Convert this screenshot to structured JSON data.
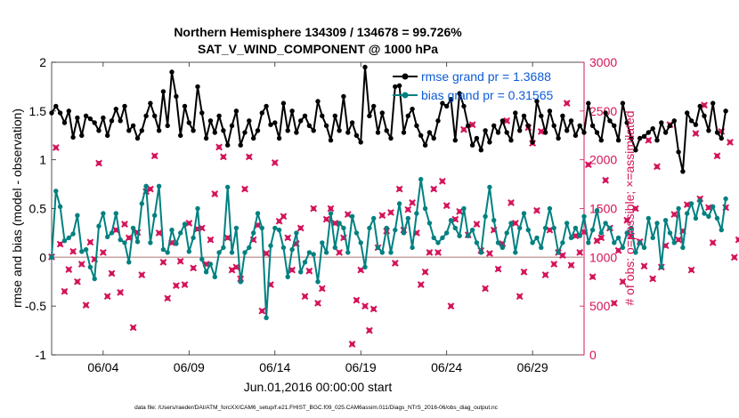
{
  "chart_data": {
    "type": "line",
    "title_line1": "Northern Hemisphere 134309 / 134678 = 99.726%",
    "title_line2": "SAT_V_WIND_COMPONENT @ 1000 hPa",
    "xlabel": "Jun.01,2016 00:00:00 start",
    "ylabel_left": "rmse and bias (model - observation)",
    "ylabel_right": "# of obs: o=possible; ×=assimilated",
    "footer": "data file: /Users/raeder/DAI/ATM_forcXX/CAM6_setup/f.e21.FHIST_BGC.f09_025.CAM6assim.011/Diags_NTrS_2016-06/obs_diag_output.nc",
    "ylim_left": [
      -1,
      2
    ],
    "ylim_right": [
      0,
      3000
    ],
    "left_ticks": [
      "-1",
      "-0.5",
      "0",
      "0.5",
      "1",
      "1.5",
      "2"
    ],
    "right_ticks": [
      "0",
      "500",
      "1000",
      "1500",
      "2000",
      "2500",
      "3000"
    ],
    "x_range_days": [
      1,
      32
    ],
    "x_ticks": [
      {
        "day": 4,
        "label": "06/04"
      },
      {
        "day": 9,
        "label": "06/09"
      },
      {
        "day": 14,
        "label": "06/14"
      },
      {
        "day": 19,
        "label": "06/19"
      },
      {
        "day": 24,
        "label": "06/24"
      },
      {
        "day": 29,
        "label": "06/29"
      }
    ],
    "grid": false,
    "legend_position": "top-right",
    "series": [
      {
        "name": "rmse grand pr = 1.3688",
        "color": "#000000",
        "axis": "left",
        "x_start": 1.0,
        "x_step": 0.25,
        "values": [
          1.48,
          1.55,
          1.48,
          1.38,
          1.5,
          1.23,
          1.43,
          1.25,
          1.45,
          1.42,
          1.38,
          1.3,
          1.43,
          1.25,
          1.4,
          1.52,
          1.4,
          1.55,
          1.3,
          1.35,
          1.22,
          1.3,
          1.45,
          1.58,
          1.45,
          1.3,
          1.7,
          1.35,
          1.9,
          1.65,
          1.25,
          1.55,
          1.38,
          1.3,
          1.75,
          1.48,
          1.22,
          1.4,
          1.28,
          1.45,
          1.3,
          1.15,
          1.35,
          1.5,
          1.15,
          1.28,
          1.4,
          1.22,
          1.3,
          1.48,
          1.55,
          1.36,
          1.38,
          1.22,
          1.58,
          1.3,
          1.5,
          1.28,
          1.4,
          1.45,
          1.35,
          1.3,
          1.6,
          1.45,
          1.35,
          1.2,
          1.45,
          1.3,
          1.65,
          1.28,
          1.38,
          1.25,
          1.18,
          1.95,
          1.45,
          1.55,
          1.28,
          1.48,
          1.3,
          1.22,
          1.75,
          1.76,
          1.28,
          1.45,
          1.52,
          1.35,
          1.25,
          1.15,
          1.28,
          1.22,
          1.4,
          1.58,
          1.55,
          1.62,
          1.2,
          1.68,
          1.55,
          1.35,
          1.15,
          1.22,
          1.1,
          1.3,
          1.18,
          1.35,
          1.28,
          1.4,
          1.28,
          1.2,
          1.48,
          1.3,
          1.45,
          1.35,
          1.18,
          1.6,
          1.45,
          1.28,
          1.5,
          1.35,
          1.22,
          1.45,
          1.3,
          1.4,
          1.25,
          1.35,
          1.28,
          1.58,
          1.35,
          1.28,
          1.2,
          1.48,
          1.4,
          1.35,
          1.2,
          1.58,
          1.38,
          1.22,
          1.1,
          1.22,
          1.24,
          1.28,
          1.32,
          1.2,
          1.38,
          1.28,
          1.35,
          1.4,
          1.08,
          0.88,
          1.48,
          1.4,
          1.36,
          1.55,
          1.45,
          1.3,
          1.58,
          1.28,
          1.22,
          1.5
        ]
      },
      {
        "name": "bias grand pr = 0.31565",
        "color": "#008080",
        "axis": "left",
        "x_start": 1.0,
        "x_step": 0.25,
        "values": [
          0.0,
          0.68,
          0.52,
          0.17,
          0.2,
          0.24,
          0.43,
          0.06,
          0.08,
          -0.1,
          -0.22,
          0.32,
          0.45,
          0.21,
          0.25,
          0.45,
          0.18,
          0.15,
          -0.05,
          0.3,
          0.16,
          0.55,
          0.73,
          0.15,
          0.43,
          0.73,
          0.08,
          0.05,
          0.28,
          0.14,
          0.25,
          0.34,
          0.06,
          0.2,
          0.5,
          -0.02,
          -0.15,
          -0.07,
          -0.2,
          0.05,
          0.1,
          0.72,
          0.05,
          0.3,
          -0.25,
          0.05,
          0.1,
          0.25,
          0.45,
          0.3,
          -0.62,
          0.12,
          0.3,
          0.28,
          0.1,
          -0.2,
          0.08,
          0.25,
          -0.15,
          -0.05,
          0.05,
          0.03,
          -0.25,
          0.15,
          0.05,
          0.45,
          0.1,
          0.35,
          0.3,
          0.05,
          0.42,
          0.25,
          0.15,
          -0.1,
          0.3,
          0.4,
          0.1,
          0.05,
          0.3,
          0.05,
          0.28,
          0.55,
          0.25,
          0.4,
          0.1,
          0.45,
          0.8,
          0.5,
          0.35,
          0.2,
          0.15,
          0.2,
          0.25,
          0.38,
          0.3,
          0.22,
          0.5,
          0.22,
          0.28,
          0.15,
          0.05,
          0.42,
          0.72,
          0.38,
          0.15,
          0.1,
          0.25,
          0.35,
          0.05,
          0.3,
          0.45,
          0.28,
          0.15,
          0.2,
          0.1,
          0.3,
          0.5,
          0.3,
          0.05,
          0.15,
          0.35,
          0.2,
          0.3,
          0.22,
          0.42,
          0.15,
          0.28,
          0.48,
          0.25,
          0.35,
          0.3,
          0.15,
          0.2,
          0.1,
          0.25,
          0.3,
          0.05,
          0.15,
          0.1,
          0.4,
          0.2,
          0.35,
          -0.1,
          0.38,
          0.25,
          0.15,
          0.5,
          0.1,
          0.45,
          0.55,
          0.4,
          0.58,
          0.45,
          0.42,
          0.52,
          0.4,
          0.28,
          0.6
        ]
      }
    ],
    "obs_assimilated": {
      "name": "# of obs assimilated",
      "color": "#d4145a",
      "axis": "right",
      "x_start": 1.0,
      "x_step": 0.25,
      "values": [
        1005,
        2125,
        1135,
        650,
        875,
        1060,
        750,
        930,
        510,
        1155,
        980,
        1965,
        1050,
        600,
        835,
        1280,
        640,
        1340,
        1200,
        280,
        1255,
        820,
        1675,
        1700,
        2040,
        1250,
        950,
        580,
        1150,
        710,
        960,
        720,
        1350,
        890,
        1290,
        1300,
        930,
        1180,
        1650,
        2130,
        2030,
        1200,
        870,
        900,
        780,
        1700,
        2030,
        1180,
        1330,
        450,
        1040,
        720,
        1970,
        1370,
        1420,
        1200,
        870,
        1140,
        1300,
        600,
        860,
        1500,
        530,
        680,
        1390,
        1500,
        1350,
        1050,
        1200,
        1440,
        110,
        560,
        870,
        500,
        250,
        470,
        1100,
        1430,
        1270,
        1460,
        940,
        1700,
        1280,
        1490,
        1560,
        1250,
        720,
        850,
        1050,
        1700,
        1050,
        1780,
        1530,
        500,
        1390,
        1470,
        2310,
        1230,
        2360,
        1340,
        1070,
        680,
        1040,
        1280,
        880,
        1140,
        2400,
        1560,
        1350,
        600,
        850,
        2330,
        2170,
        1480,
        2290,
        820,
        1280,
        930,
        1050,
        1020,
        2580,
        920,
        1220,
        1050,
        1260,
        1950,
        800,
        1170,
        1200,
        1790,
        1300,
        530,
        1070,
        750,
        1380,
        1220,
        1500,
        1160,
        910,
        2200,
        780,
        1930,
        900,
        1120,
        2360,
        1440,
        1180,
        1270,
        1540,
        870,
        2270,
        1600,
        2560,
        1510,
        1150,
        2040,
        2290,
        1510,
        2180,
        1000,
        1180,
        0
      ]
    }
  }
}
